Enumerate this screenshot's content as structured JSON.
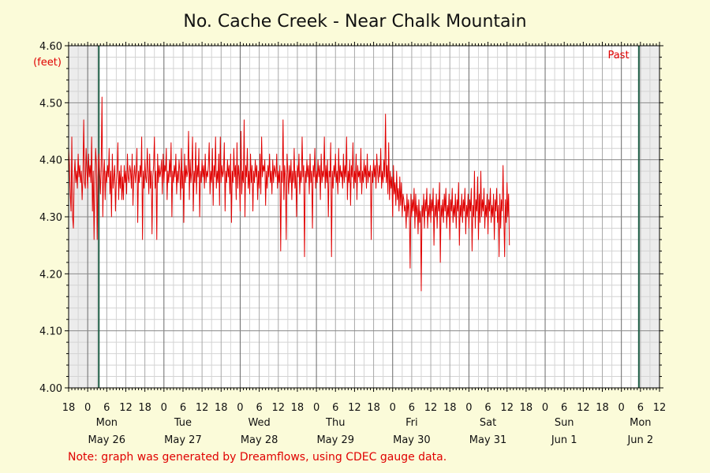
{
  "chart_data": {
    "type": "line",
    "title": "No. Cache Creek - Near Chalk Mountain",
    "ylabel_unit": "(feet)",
    "ylim": [
      4.0,
      4.6
    ],
    "y_ticks": [
      {
        "value": 4.0,
        "label": "4.00"
      },
      {
        "value": 4.1,
        "label": "4.10"
      },
      {
        "value": 4.2,
        "label": "4.20"
      },
      {
        "value": 4.3,
        "label": "4.30"
      },
      {
        "value": 4.4,
        "label": "4.40"
      },
      {
        "value": 4.5,
        "label": "4.50"
      },
      {
        "value": 4.6,
        "label": "4.60"
      }
    ],
    "x_unit": "hours since 18:00 May 25",
    "xlim": [
      0,
      186
    ],
    "x_hour_labels": [
      "18",
      "0",
      "6",
      "12",
      "18",
      "0",
      "6",
      "12",
      "18",
      "0",
      "6",
      "12",
      "18",
      "0",
      "6",
      "12",
      "18",
      "0",
      "6",
      "12",
      "18",
      "0",
      "6",
      "12",
      "18",
      "0",
      "6",
      "12",
      "18",
      "0",
      "6",
      "12"
    ],
    "x_days": [
      {
        "hour": 12,
        "weekday": "Mon",
        "date": "May 26"
      },
      {
        "hour": 36,
        "weekday": "Tue",
        "date": "May 27"
      },
      {
        "hour": 60,
        "weekday": "Wed",
        "date": "May 28"
      },
      {
        "hour": 84,
        "weekday": "Thu",
        "date": "May 29"
      },
      {
        "hour": 108,
        "weekday": "Fri",
        "date": "May 30"
      },
      {
        "hour": 132,
        "weekday": "Sat",
        "date": "May 31"
      },
      {
        "hour": 156,
        "weekday": "Sun",
        "date": "Jun 1"
      },
      {
        "hour": 180,
        "weekday": "Mon",
        "date": "Jun 2"
      }
    ],
    "shaded_ranges": [
      [
        0,
        9.5
      ],
      [
        179.5,
        186
      ]
    ],
    "marker_lines": [
      9.5,
      179.5
    ],
    "past_label": "Past",
    "series": [
      {
        "name": "",
        "color": "#e00000",
        "x_start": 0,
        "x_step": 0.25,
        "values": [
          4.42,
          4.39,
          4.34,
          4.31,
          4.44,
          4.3,
          4.28,
          4.37,
          4.4,
          4.36,
          4.38,
          4.35,
          4.41,
          4.37,
          4.39,
          4.36,
          4.38,
          4.33,
          4.37,
          4.47,
          4.36,
          4.35,
          4.42,
          4.38,
          4.35,
          4.41,
          4.37,
          4.39,
          4.36,
          4.44,
          4.31,
          4.38,
          4.26,
          4.36,
          4.42,
          4.39,
          4.26,
          4.37,
          4.41,
          4.38,
          4.34,
          4.39,
          4.51,
          4.3,
          4.37,
          4.4,
          4.33,
          4.38,
          4.36,
          4.39,
          4.37,
          4.42,
          4.34,
          4.38,
          4.3,
          4.41,
          4.35,
          4.37,
          4.39,
          4.31,
          4.36,
          4.38,
          4.43,
          4.33,
          4.38,
          4.35,
          4.39,
          4.33,
          4.37,
          4.33,
          4.39,
          4.36,
          4.38,
          4.34,
          4.41,
          4.37,
          4.36,
          4.39,
          4.38,
          4.35,
          4.41,
          4.32,
          4.37,
          4.39,
          4.36,
          4.38,
          4.42,
          4.29,
          4.38,
          4.36,
          4.39,
          4.37,
          4.44,
          4.26,
          4.38,
          4.35,
          4.4,
          4.37,
          4.36,
          4.42,
          4.38,
          4.34,
          4.41,
          4.35,
          4.38,
          4.27,
          4.37,
          4.39,
          4.44,
          4.35,
          4.38,
          4.26,
          4.41,
          4.36,
          4.39,
          4.37,
          4.38,
          4.4,
          4.34,
          4.41,
          4.36,
          4.39,
          4.38,
          4.42,
          4.33,
          4.38,
          4.36,
          4.4,
          4.37,
          4.43,
          4.3,
          4.38,
          4.36,
          4.39,
          4.37,
          4.41,
          4.34,
          4.38,
          4.36,
          4.4,
          4.38,
          4.33,
          4.42,
          4.35,
          4.38,
          4.29,
          4.41,
          4.36,
          4.39,
          4.37,
          4.38,
          4.45,
          4.33,
          4.4,
          4.36,
          4.38,
          4.44,
          4.31,
          4.38,
          4.36,
          4.43,
          4.34,
          4.39,
          4.37,
          4.42,
          4.3,
          4.38,
          4.36,
          4.4,
          4.37,
          4.39,
          4.35,
          4.41,
          4.36,
          4.38,
          4.37,
          4.39,
          4.43,
          4.34,
          4.38,
          4.36,
          4.42,
          4.32,
          4.39,
          4.37,
          4.44,
          4.35,
          4.38,
          4.36,
          4.41,
          4.32,
          4.44,
          4.36,
          4.39,
          4.37,
          4.38,
          4.43,
          4.31,
          4.38,
          4.36,
          4.4,
          4.37,
          4.39,
          4.34,
          4.41,
          4.29,
          4.38,
          4.36,
          4.42,
          4.37,
          4.39,
          4.33,
          4.43,
          4.35,
          4.39,
          4.37,
          4.31,
          4.45,
          4.34,
          4.38,
          4.36,
          4.47,
          4.3,
          4.39,
          4.37,
          4.42,
          4.35,
          4.38,
          4.34,
          4.41,
          4.36,
          4.39,
          4.31,
          4.38,
          4.36,
          4.4,
          4.37,
          4.39,
          4.33,
          4.38,
          4.35,
          4.41,
          4.34,
          4.44,
          4.37,
          4.39,
          4.38,
          4.4,
          4.32,
          4.38,
          4.35,
          4.39,
          4.37,
          4.41,
          4.36,
          4.38,
          4.34,
          4.4,
          4.36,
          4.39,
          4.38,
          4.37,
          4.41,
          4.35,
          4.38,
          4.36,
          4.39,
          4.24,
          4.38,
          4.36,
          4.47,
          4.33,
          4.39,
          4.37,
          4.26,
          4.41,
          4.38,
          4.34,
          4.39,
          4.36,
          4.4,
          4.33,
          4.38,
          4.36,
          4.42,
          4.35,
          4.38,
          4.3,
          4.39,
          4.37,
          4.41,
          4.34,
          4.38,
          4.36,
          4.44,
          4.37,
          4.39,
          4.23,
          4.38,
          4.36,
          4.4,
          4.37,
          4.39,
          4.34,
          4.41,
          4.36,
          4.38,
          4.28,
          4.39,
          4.37,
          4.42,
          4.35,
          4.38,
          4.36,
          4.4,
          4.37,
          4.39,
          4.33,
          4.41,
          4.36,
          4.38,
          4.37,
          4.44,
          4.35,
          4.39,
          4.36,
          4.4,
          4.3,
          4.38,
          4.37,
          4.43,
          4.23,
          4.38,
          4.35,
          4.39,
          4.37,
          4.41,
          4.36,
          4.38,
          4.34,
          4.42,
          4.36,
          4.39,
          4.37,
          4.38,
          4.35,
          4.41,
          4.36,
          4.39,
          4.37,
          4.44,
          4.33,
          4.38,
          4.36,
          4.4,
          4.32,
          4.39,
          4.37,
          4.43,
          4.35,
          4.38,
          4.36,
          4.41,
          4.33,
          4.39,
          4.37,
          4.38,
          4.36,
          4.42,
          4.34,
          4.38,
          4.36,
          4.4,
          4.37,
          4.39,
          4.35,
          4.41,
          4.36,
          4.38,
          4.37,
          4.39,
          4.26,
          4.38,
          4.36,
          4.4,
          4.37,
          4.39,
          4.35,
          4.41,
          4.38,
          4.36,
          4.39,
          4.37,
          4.42,
          4.35,
          4.38,
          4.36,
          4.4,
          4.37,
          4.48,
          4.36,
          4.39,
          4.34,
          4.43,
          4.33,
          4.38,
          4.35,
          4.37,
          4.3,
          4.39,
          4.34,
          4.36,
          4.32,
          4.38,
          4.33,
          4.35,
          4.31,
          4.37,
          4.32,
          4.36,
          4.3,
          4.34,
          4.33,
          4.31,
          4.32,
          4.28,
          4.34,
          4.3,
          4.33,
          4.31,
          4.21,
          4.34,
          4.3,
          4.33,
          4.31,
          4.35,
          4.28,
          4.34,
          4.3,
          4.32,
          4.27,
          4.33,
          4.29,
          4.31,
          4.17,
          4.32,
          4.3,
          4.34,
          4.28,
          4.33,
          4.31,
          4.35,
          4.28,
          4.32,
          4.3,
          4.34,
          4.29,
          4.33,
          4.31,
          4.35,
          4.25,
          4.32,
          4.3,
          4.34,
          4.28,
          4.33,
          4.31,
          4.36,
          4.22,
          4.32,
          4.3,
          4.33,
          4.29,
          4.34,
          4.31,
          4.35,
          4.28,
          4.32,
          4.3,
          4.34,
          4.26,
          4.33,
          4.31,
          4.35,
          4.29,
          4.32,
          4.3,
          4.34,
          4.28,
          4.33,
          4.31,
          4.36,
          4.25,
          4.32,
          4.3,
          4.34,
          4.29,
          4.33,
          4.31,
          4.35,
          4.27,
          4.32,
          4.3,
          4.34,
          4.28,
          4.33,
          4.31,
          4.35,
          4.24,
          4.32,
          4.3,
          4.38,
          4.28,
          4.33,
          4.31,
          4.37,
          4.26,
          4.34,
          4.29,
          4.38,
          4.3,
          4.33,
          4.31,
          4.35,
          4.28,
          4.32,
          4.3,
          4.34,
          4.27,
          4.33,
          4.31,
          4.35,
          4.29,
          4.32,
          4.3,
          4.34,
          4.26,
          4.33,
          4.31,
          4.35,
          4.29,
          4.32,
          4.23,
          4.34,
          4.28,
          4.33,
          4.31,
          4.39,
          4.3,
          4.23,
          4.33,
          4.29,
          4.36,
          4.3,
          4.34,
          4.25
        ]
      }
    ]
  },
  "footer": {
    "note": "Note: graph was generated by Dreamflows, using CDEC gauge data."
  }
}
